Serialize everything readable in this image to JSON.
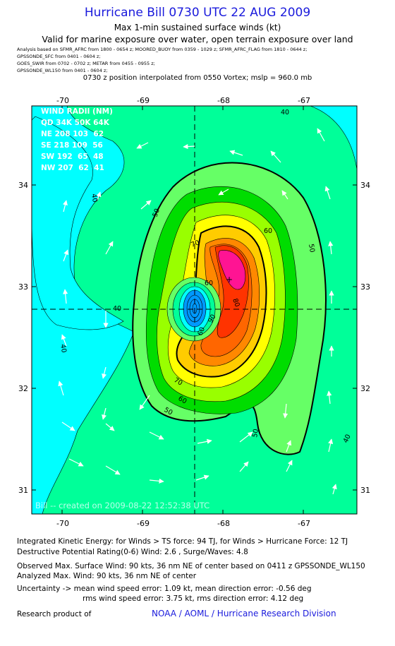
{
  "header": {
    "title": "Hurricane Bill 0730 UTC 22 AUG 2009",
    "subtitle": "Max 1-min sustained surface winds (kt)",
    "valid_note": "Valid for marine exposure over water, open terrain exposure over land",
    "sources": [
      "Analysis based on  SFMR_AFRC from 1800 - 0654 z;  MOORED_BUOY from 0359 - 1029 z;  SFMR_AFRC_FLAG from 1810 - 0644 z;",
      "GPSSONDE_SFC from 0401 - 0604 z;",
      "GOES_SWIR from 0702 - 0702 z;  METAR from 0455 - 0955 z;",
      "GPSSONDE_WL150 from 0401 - 0604 z;"
    ],
    "interp_note": "0730 z position interpolated from 0550 Vortex; mslp = 960.0 mb"
  },
  "map": {
    "lon_ticks": [
      "-70",
      "-69",
      "-68",
      "-67"
    ],
    "lat_ticks": [
      "34",
      "33",
      "32",
      "31"
    ],
    "contour_labels": [
      "40",
      "40",
      "40",
      "40",
      "40",
      "50",
      "50",
      "50",
      "50",
      "60",
      "60",
      "60",
      "60",
      "70",
      "70",
      "80",
      "90"
    ],
    "colors": {
      "cyan": "#00ffff",
      "aqua_green": "#00ff99",
      "mint": "#66ff66",
      "green": "#00dd00",
      "lime": "#99ff00",
      "yellow": "#ffff00",
      "gold": "#ffcc00",
      "orange": "#ff8800",
      "dark_orange": "#ff6600",
      "red_orange": "#ff3300",
      "magenta": "#ff1493",
      "eye_blue": "#0099ff"
    },
    "wind_radii": {
      "heading": "WIND RADII (NM)",
      "columns": "QD 34K 50K 64K",
      "rows": [
        "NE 208 103  62",
        "SE 218 109  56",
        "SW 192  65  48",
        "NW 207  62  41"
      ]
    },
    "watermark": "Bill -- created on 2009-08-22 12:52:38 UTC",
    "center_marker": "+"
  },
  "footer": {
    "ike": "Integrated Kinetic Energy:  for Winds > TS force: 94 TJ,  for Winds > Hurricane Force: 12 TJ",
    "dpr": "Destructive Potential Rating(0-6)   Wind: 2.6 , Surge/Waves: 4.8",
    "observed_max": "Observed Max. Surface Wind: 90 kts, 36 nm NE of center based on 0411 z GPSSONDE_WL150",
    "analyzed_max": "Analyzed Max. Wind: 90 kts, 36 nm NE of center",
    "uncertainty_1": "Uncertainty -> mean wind speed error: 1.09 kt,   mean direction error:  -0.56 deg",
    "uncertainty_2": "rms wind speed error: 3.75 kt,   rms direction error: 4.12 deg",
    "research": "Research product of",
    "org": "NOAA / AOML / Hurricane Research Division"
  }
}
